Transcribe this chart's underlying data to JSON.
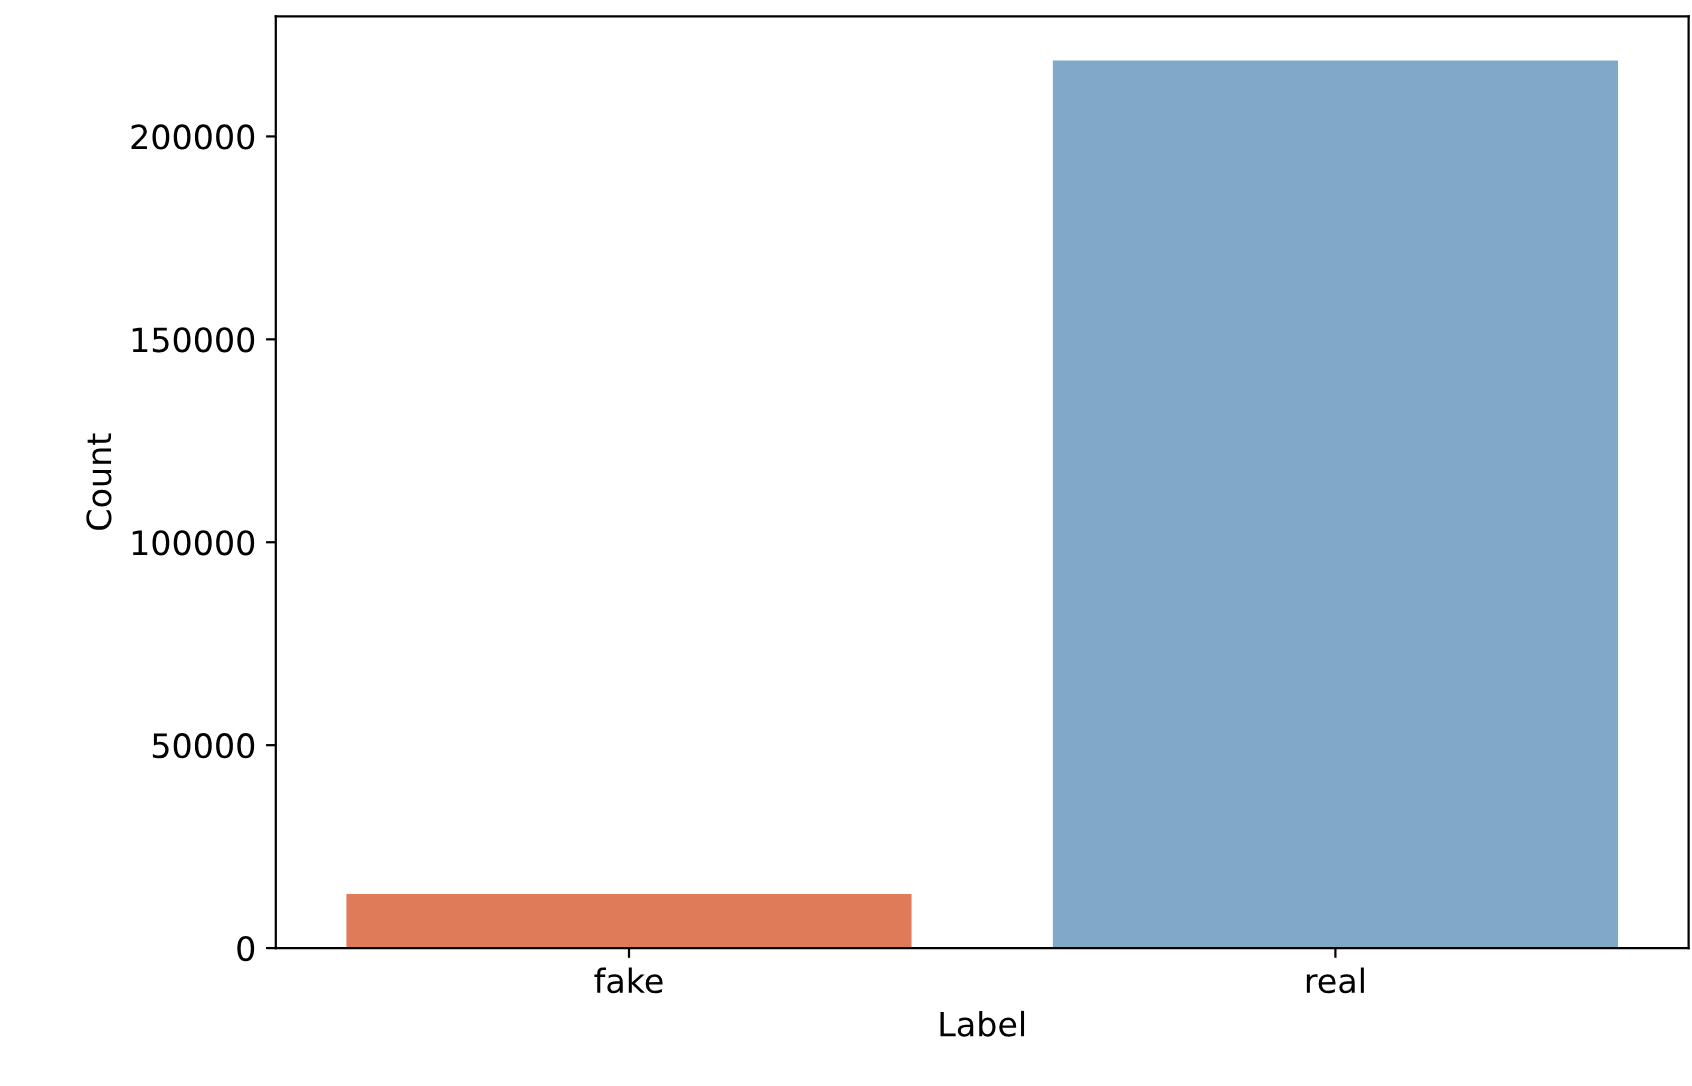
{
  "chart_data": {
    "type": "bar",
    "xlabel": "Label",
    "ylabel": "Count",
    "categories": [
      "fake",
      "real"
    ],
    "values": [
      13300,
      218700
    ],
    "colors": [
      "#e07b5a",
      "#80a9c8"
    ],
    "ylim": [
      0,
      229600
    ],
    "yticks": [
      0,
      50000,
      100000,
      150000,
      200000
    ],
    "grid": false
  }
}
